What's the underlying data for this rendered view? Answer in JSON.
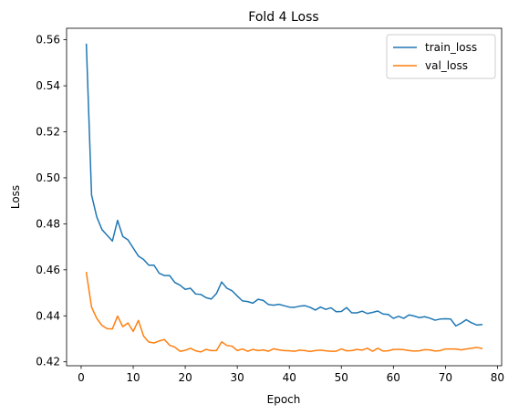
{
  "chart_data": {
    "type": "line",
    "title": "Fold 4 Loss",
    "xlabel": "Epoch",
    "ylabel": "Loss",
    "xlim": [
      -2.8,
      80.8
    ],
    "ylim": [
      0.4183,
      0.565
    ],
    "xticks": [
      0,
      10,
      20,
      30,
      40,
      50,
      60,
      70,
      80
    ],
    "yticks": [
      0.42,
      0.44,
      0.46,
      0.48,
      0.5,
      0.52,
      0.54,
      0.56
    ],
    "legend_position": "top-right",
    "grid": false,
    "series": [
      {
        "name": "train_loss",
        "color": "#1f77b4",
        "x": [
          1,
          2,
          3,
          4,
          5,
          6,
          7,
          8,
          9,
          10,
          11,
          12,
          13,
          14,
          15,
          16,
          17,
          18,
          19,
          20,
          21,
          22,
          23,
          24,
          25,
          26,
          27,
          28,
          29,
          30,
          31,
          32,
          33,
          34,
          35,
          36,
          37,
          38,
          39,
          40,
          41,
          42,
          43,
          44,
          45,
          46,
          47,
          48,
          49,
          50,
          51,
          52,
          53,
          54,
          55,
          56,
          57,
          58,
          59,
          60,
          61,
          62,
          63,
          64,
          65,
          66,
          67,
          68,
          69,
          70,
          71,
          72,
          73,
          74,
          75,
          76,
          77
        ],
        "values": [
          0.558,
          0.4925,
          0.483,
          0.4775,
          0.475,
          0.4725,
          0.4815,
          0.4745,
          0.473,
          0.4695,
          0.466,
          0.4645,
          0.462,
          0.462,
          0.4585,
          0.4575,
          0.4575,
          0.4545,
          0.4533,
          0.4515,
          0.452,
          0.4495,
          0.4493,
          0.4479,
          0.4473,
          0.4497,
          0.4547,
          0.452,
          0.4509,
          0.4486,
          0.4465,
          0.4462,
          0.4455,
          0.4472,
          0.4467,
          0.4449,
          0.4446,
          0.445,
          0.4444,
          0.4438,
          0.4437,
          0.4442,
          0.4444,
          0.4437,
          0.4425,
          0.4438,
          0.4428,
          0.4435,
          0.4418,
          0.4419,
          0.4436,
          0.4413,
          0.4413,
          0.442,
          0.441,
          0.4415,
          0.4421,
          0.4408,
          0.4406,
          0.4389,
          0.4398,
          0.4389,
          0.4404,
          0.4399,
          0.4392,
          0.4396,
          0.439,
          0.4381,
          0.4386,
          0.4387,
          0.4386,
          0.4356,
          0.4368,
          0.4383,
          0.437,
          0.436,
          0.4362
        ]
      },
      {
        "name": "val_loss",
        "color": "#ff7f0e",
        "x": [
          1,
          2,
          3,
          4,
          5,
          6,
          7,
          8,
          9,
          10,
          11,
          12,
          13,
          14,
          15,
          16,
          17,
          18,
          19,
          20,
          21,
          22,
          23,
          24,
          25,
          26,
          27,
          28,
          29,
          30,
          31,
          32,
          33,
          34,
          35,
          36,
          37,
          38,
          39,
          40,
          41,
          42,
          43,
          44,
          45,
          46,
          47,
          48,
          49,
          50,
          51,
          52,
          53,
          54,
          55,
          56,
          57,
          58,
          59,
          60,
          61,
          62,
          63,
          64,
          65,
          66,
          67,
          68,
          69,
          70,
          71,
          72,
          73,
          74,
          75,
          76,
          77
        ],
        "values": [
          0.4588,
          0.4438,
          0.4389,
          0.4358,
          0.4344,
          0.4343,
          0.4399,
          0.4353,
          0.4369,
          0.4332,
          0.438,
          0.4312,
          0.4286,
          0.4282,
          0.4291,
          0.4297,
          0.4272,
          0.4264,
          0.4246,
          0.425,
          0.4259,
          0.4248,
          0.4243,
          0.4254,
          0.4249,
          0.4249,
          0.4287,
          0.4271,
          0.4268,
          0.4249,
          0.4256,
          0.4246,
          0.4254,
          0.4249,
          0.4252,
          0.4246,
          0.4257,
          0.4252,
          0.4249,
          0.4248,
          0.4246,
          0.4251,
          0.4249,
          0.4245,
          0.4249,
          0.4251,
          0.4248,
          0.4246,
          0.4246,
          0.4256,
          0.4248,
          0.4249,
          0.4254,
          0.4251,
          0.4259,
          0.4246,
          0.4259,
          0.4247,
          0.4248,
          0.4254,
          0.4254,
          0.4253,
          0.4249,
          0.4247,
          0.4248,
          0.4253,
          0.4252,
          0.4247,
          0.4249,
          0.4256,
          0.4256,
          0.4256,
          0.4252,
          0.4256,
          0.4259,
          0.4263,
          0.4258
        ]
      }
    ]
  }
}
